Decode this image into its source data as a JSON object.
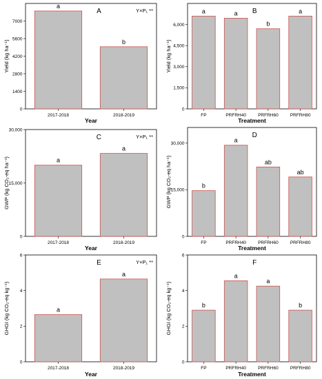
{
  "chart_data": [
    {
      "id": "A",
      "type": "bar",
      "panel_letter": "A",
      "annotation": "Y×P₁ **",
      "categories": [
        "2017-2018",
        "2018-2019"
      ],
      "values": [
        7800,
        4950
      ],
      "letters": [
        "a",
        "b"
      ],
      "xlabel": "Year",
      "ylabel": "Yield (kg ha⁻¹)",
      "ylim": [
        0,
        8400
      ],
      "yticks": [
        0,
        1400,
        2800,
        4200,
        5600,
        7000
      ],
      "ytick_labels": [
        "0",
        "1400",
        "2800",
        "4200",
        "5600",
        "7000"
      ]
    },
    {
      "id": "B",
      "type": "bar",
      "panel_letter": "B",
      "annotation": "",
      "categories": [
        "FP",
        "PRFRH40",
        "PRFRH60",
        "PRFRH80"
      ],
      "values": [
        6600,
        6450,
        5700,
        6600
      ],
      "letters": [
        "a",
        "a",
        "b",
        "a"
      ],
      "xlabel": "Treatment",
      "ylabel": "Yield (kg ha⁻¹)",
      "ylim": [
        0,
        7500
      ],
      "yticks": [
        0,
        1500,
        3000,
        4500,
        6000
      ],
      "ytick_labels": [
        "0",
        "1,500",
        "3,000",
        "4,500",
        "6,000"
      ]
    },
    {
      "id": "C",
      "type": "bar",
      "panel_letter": "C",
      "annotation": "Y×P₁ **",
      "categories": [
        "2017-2018",
        "2018-2019"
      ],
      "values": [
        20000,
        23300
      ],
      "letters": [
        "a",
        "a"
      ],
      "xlabel": "Year",
      "ylabel": "GWP (kg CO₂-eq ha⁻¹)",
      "ylim": [
        0,
        30000
      ],
      "yticks": [
        0,
        15000,
        30000
      ],
      "ytick_labels": [
        "0",
        "15,000",
        "30,000"
      ]
    },
    {
      "id": "D",
      "type": "bar",
      "panel_letter": "D",
      "annotation": "",
      "categories": [
        "FP",
        "PRFRH40",
        "PRFRH60",
        "PRFRH80"
      ],
      "values": [
        14700,
        29300,
        22300,
        19100
      ],
      "letters": [
        "b",
        "a",
        "ab",
        "ab"
      ],
      "xlabel": "Treatment",
      "ylabel": "GWP (kg CO₂-eq ha⁻¹)",
      "ylim": [
        0,
        35000
      ],
      "yticks": [
        0,
        15000,
        30000
      ],
      "ytick_labels": [
        "0",
        "15,000",
        "30,000"
      ]
    },
    {
      "id": "E",
      "type": "bar",
      "panel_letter": "E",
      "annotation": "Y×P₁ **",
      "categories": [
        "2017-2018",
        "2018-2019"
      ],
      "values": [
        2.65,
        4.65
      ],
      "letters": [
        "a",
        "a"
      ],
      "xlabel": "Year",
      "ylabel": "GHGI (kg CO₂-eq kg⁻¹)",
      "ylim": [
        0,
        6
      ],
      "yticks": [
        0,
        2,
        4,
        6
      ],
      "ytick_labels": [
        "0",
        "2",
        "4",
        "6"
      ]
    },
    {
      "id": "F",
      "type": "bar",
      "panel_letter": "F",
      "annotation": "",
      "categories": [
        "FP",
        "PRFRH40",
        "PRFRH60",
        "PRFRH80"
      ],
      "values": [
        2.9,
        4.55,
        4.25,
        2.9
      ],
      "letters": [
        "b",
        "a",
        "a",
        "b"
      ],
      "xlabel": "Treatment",
      "ylabel": "GHGI (kg CO₂-eq kg⁻¹)",
      "ylim": [
        0,
        6
      ],
      "yticks": [
        0,
        2,
        4,
        6
      ],
      "ytick_labels": [
        "0",
        "2",
        "4",
        "6"
      ]
    }
  ],
  "colors": {
    "bar_fill": "#c0c0c0",
    "bar_stroke": "#c9524e",
    "axis": "#000000"
  }
}
